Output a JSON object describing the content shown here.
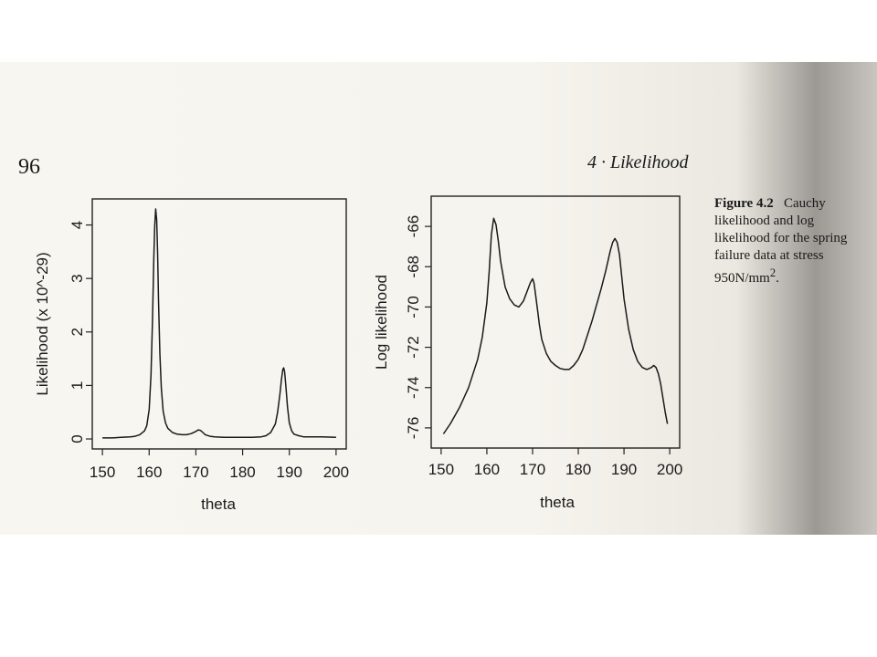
{
  "page": {
    "number": "96",
    "running_head": "4 · Likelihood",
    "caption_label": "Figure 4.2",
    "caption_text": "Cauchy likelihood and log likelihood for the spring failure data at stress 950N/mm",
    "caption_sup": "2",
    "caption_end": "."
  },
  "chart_data": [
    {
      "type": "line",
      "xlabel": "theta",
      "ylabel": "Likelihood (x 10^-29)",
      "xlim": [
        150,
        200
      ],
      "ylim": [
        0,
        4.3
      ],
      "xticks": [
        "150",
        "160",
        "170",
        "180",
        "190",
        "200"
      ],
      "yticks": [
        "0",
        "1",
        "2",
        "3",
        "4"
      ],
      "series": [
        {
          "x": [
            150,
            152,
            154,
            156,
            157,
            158,
            159,
            159.5,
            160,
            160.4,
            160.7,
            161,
            161.2,
            161.4,
            161.6,
            161.8,
            162,
            162.3,
            162.6,
            163,
            163.5,
            164,
            165,
            166,
            167,
            168,
            169,
            170,
            170.5,
            171,
            171.5,
            172,
            173,
            174,
            176,
            178,
            180,
            182,
            184,
            185,
            186,
            187,
            187.5,
            188,
            188.3,
            188.6,
            188.8,
            189,
            189.3,
            189.6,
            190,
            190.5,
            191,
            192,
            193,
            195,
            197,
            200
          ],
          "y": [
            0.02,
            0.02,
            0.03,
            0.04,
            0.05,
            0.08,
            0.15,
            0.25,
            0.55,
            1.2,
            2.2,
            3.4,
            4.0,
            4.3,
            4.1,
            3.5,
            2.6,
            1.6,
            0.95,
            0.52,
            0.3,
            0.2,
            0.12,
            0.09,
            0.08,
            0.08,
            0.1,
            0.14,
            0.17,
            0.16,
            0.12,
            0.08,
            0.05,
            0.04,
            0.03,
            0.03,
            0.03,
            0.03,
            0.04,
            0.06,
            0.12,
            0.28,
            0.5,
            0.85,
            1.1,
            1.3,
            1.33,
            1.25,
            0.95,
            0.6,
            0.3,
            0.15,
            0.09,
            0.06,
            0.04,
            0.04,
            0.04,
            0.03
          ]
        }
      ]
    },
    {
      "type": "line",
      "xlabel": "theta",
      "ylabel": "Log likelihood",
      "xlim": [
        150,
        200
      ],
      "ylim": [
        -76.5,
        -65
      ],
      "xticks": [
        "150",
        "160",
        "170",
        "180",
        "190",
        "200"
      ],
      "yticks": [
        "-76",
        "-74",
        "-72",
        "-70",
        "-68",
        "-66"
      ],
      "series": [
        {
          "x": [
            150.5,
            152,
            154,
            156,
            158,
            159,
            160,
            160.5,
            161,
            161.5,
            162,
            162.5,
            163,
            164,
            165,
            166,
            167,
            168,
            169,
            169.5,
            170,
            170.3,
            170.6,
            171,
            171.5,
            172,
            173,
            174,
            175,
            176,
            177,
            178,
            179,
            180,
            181,
            182,
            183,
            184,
            185,
            186,
            187,
            187.5,
            188,
            188.5,
            189,
            189.5,
            190,
            191,
            192,
            193,
            194,
            195,
            196,
            196.5,
            197,
            197.5,
            198,
            198.5,
            199,
            199.5
          ],
          "y": [
            -76.3,
            -75.8,
            -75.0,
            -74.0,
            -72.6,
            -71.5,
            -69.8,
            -68.3,
            -66.4,
            -65.6,
            -65.9,
            -66.7,
            -67.7,
            -69.0,
            -69.6,
            -69.9,
            -70.0,
            -69.7,
            -69.1,
            -68.8,
            -68.6,
            -68.8,
            -69.3,
            -70.0,
            -70.9,
            -71.6,
            -72.3,
            -72.7,
            -72.9,
            -73.05,
            -73.1,
            -73.1,
            -72.9,
            -72.6,
            -72.1,
            -71.4,
            -70.7,
            -69.9,
            -69.1,
            -68.2,
            -67.2,
            -66.8,
            -66.6,
            -66.8,
            -67.4,
            -68.5,
            -69.6,
            -71.1,
            -72.1,
            -72.7,
            -73.0,
            -73.1,
            -73.0,
            -72.9,
            -73.0,
            -73.3,
            -73.8,
            -74.5,
            -75.2,
            -75.8
          ]
        }
      ]
    }
  ]
}
